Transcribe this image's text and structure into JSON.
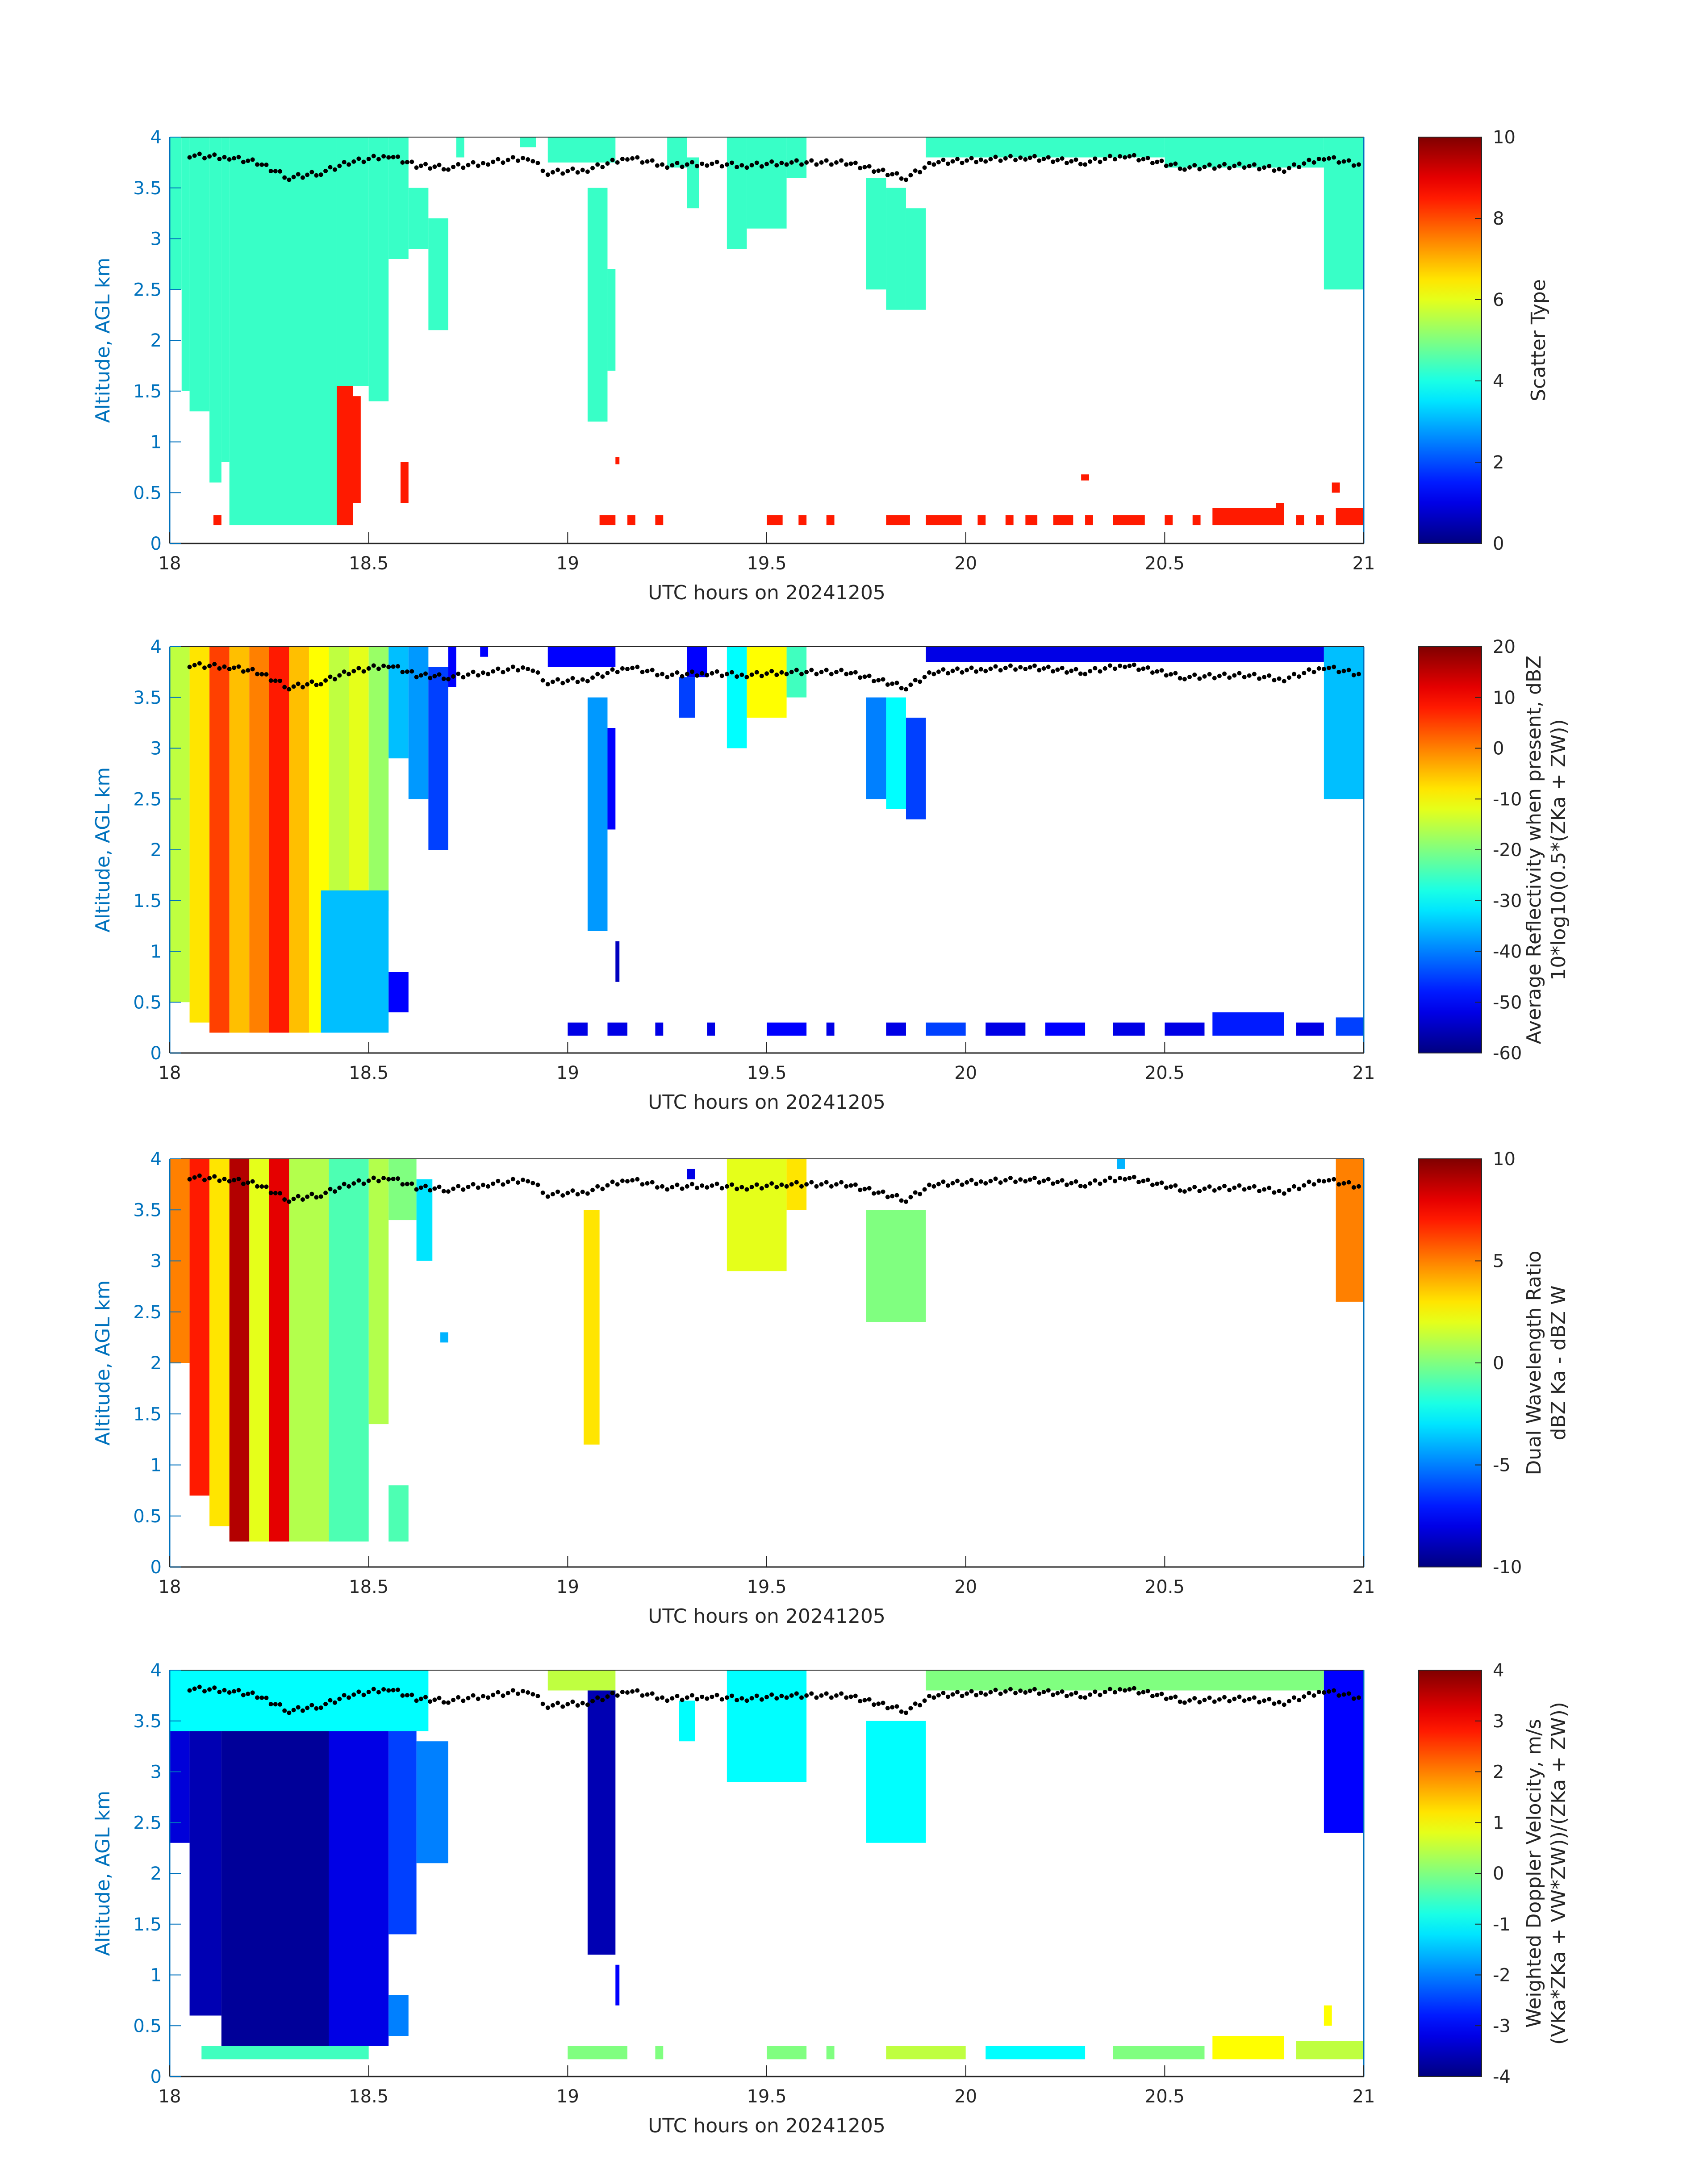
{
  "chart_data": [
    {
      "type": "heatmap",
      "xlabel": "UTC hours on 20241205",
      "ylabel": "Altitude, AGL km",
      "xlim": [
        18,
        21
      ],
      "ylim": [
        0,
        4
      ],
      "xticks": [
        "18",
        "18.5",
        "19",
        "19.5",
        "20",
        "20.5",
        "21"
      ],
      "yticks": [
        "0",
        "0.5",
        "1",
        "1.5",
        "2",
        "2.5",
        "3",
        "3.5",
        "4"
      ],
      "colorbar": {
        "label": "Scatter Type",
        "label2": "",
        "clim": [
          0,
          10
        ],
        "ticks": [
          "0",
          "2",
          "4",
          "6",
          "8",
          "10"
        ]
      },
      "cells_t0_t1_z0_z1_value": [
        [
          18.0,
          18.03,
          2.5,
          4,
          4.3
        ],
        [
          18.03,
          18.05,
          1.5,
          4,
          4.3
        ],
        [
          18.05,
          18.1,
          1.3,
          4,
          4.3
        ],
        [
          18.1,
          18.13,
          0.6,
          4,
          4.3
        ],
        [
          18.13,
          18.15,
          0.8,
          4,
          4.3
        ],
        [
          18.15,
          18.42,
          0.18,
          4,
          4.3
        ],
        [
          18.42,
          18.5,
          1.55,
          4,
          4.3
        ],
        [
          18.5,
          18.55,
          1.4,
          4,
          4.3
        ],
        [
          18.55,
          18.6,
          2.8,
          4,
          4.3
        ],
        [
          18.6,
          18.65,
          2.9,
          3.5,
          4.3
        ],
        [
          18.65,
          18.7,
          2.1,
          3.2,
          4.3
        ],
        [
          18.72,
          18.74,
          3.8,
          4,
          4.3
        ],
        [
          18.88,
          18.92,
          3.9,
          4,
          4.3
        ],
        [
          18.95,
          19.12,
          3.75,
          4,
          4.3
        ],
        [
          19.05,
          19.1,
          1.2,
          3.5,
          4.3
        ],
        [
          19.1,
          19.12,
          1.7,
          2.7,
          4.3
        ],
        [
          19.25,
          19.3,
          3.7,
          4,
          4.3
        ],
        [
          19.3,
          19.33,
          3.3,
          3.8,
          4.3
        ],
        [
          19.4,
          19.45,
          2.9,
          4,
          4.3
        ],
        [
          19.45,
          19.55,
          3.1,
          4,
          4.3
        ],
        [
          19.55,
          19.6,
          3.6,
          4,
          4.3
        ],
        [
          19.75,
          19.8,
          2.5,
          3.6,
          4.3
        ],
        [
          19.8,
          19.85,
          2.3,
          3.5,
          4.3
        ],
        [
          19.85,
          19.9,
          2.3,
          3.3,
          4.3
        ],
        [
          19.9,
          20.5,
          3.8,
          4,
          4.3
        ],
        [
          20.5,
          20.9,
          3.7,
          4,
          4.3
        ],
        [
          20.9,
          21,
          2.5,
          4,
          4.3
        ],
        [
          18.42,
          18.46,
          0.18,
          1.55,
          8.5
        ],
        [
          18.46,
          18.48,
          0.4,
          1.45,
          8.5
        ],
        [
          18.58,
          18.6,
          0.4,
          0.8,
          8.5
        ],
        [
          18.11,
          18.13,
          0.18,
          0.28,
          8.5
        ],
        [
          19.12,
          19.13,
          0.78,
          0.85,
          8.5
        ],
        [
          19.08,
          19.12,
          0.18,
          0.28,
          8.5
        ],
        [
          19.15,
          19.17,
          0.18,
          0.28,
          8.5
        ],
        [
          19.22,
          19.24,
          0.18,
          0.28,
          8.5
        ],
        [
          19.5,
          19.54,
          0.18,
          0.28,
          8.5
        ],
        [
          19.58,
          19.6,
          0.18,
          0.28,
          8.5
        ],
        [
          19.65,
          19.67,
          0.18,
          0.28,
          8.5
        ],
        [
          19.8,
          19.86,
          0.18,
          0.28,
          8.5
        ],
        [
          19.9,
          19.99,
          0.18,
          0.28,
          8.5
        ],
        [
          20.03,
          20.05,
          0.18,
          0.28,
          8.5
        ],
        [
          20.1,
          20.12,
          0.18,
          0.28,
          8.5
        ],
        [
          20.15,
          20.18,
          0.18,
          0.28,
          8.5
        ],
        [
          20.22,
          20.27,
          0.18,
          0.28,
          8.5
        ],
        [
          20.29,
          20.31,
          0.62,
          0.68,
          8.5
        ],
        [
          20.3,
          20.32,
          0.18,
          0.28,
          8.5
        ],
        [
          20.37,
          20.45,
          0.18,
          0.28,
          8.5
        ],
        [
          20.5,
          20.52,
          0.18,
          0.28,
          8.5
        ],
        [
          20.57,
          20.59,
          0.18,
          0.28,
          8.5
        ],
        [
          20.62,
          20.78,
          0.18,
          0.35,
          8.5
        ],
        [
          20.78,
          20.8,
          0.18,
          0.4,
          8.5
        ],
        [
          20.83,
          20.85,
          0.18,
          0.28,
          8.5
        ],
        [
          20.88,
          20.9,
          0.18,
          0.28,
          8.5
        ],
        [
          20.92,
          20.94,
          0.5,
          0.6,
          8.5
        ],
        [
          20.93,
          21,
          0.18,
          0.35,
          8.5
        ]
      ]
    },
    {
      "type": "heatmap",
      "xlabel": "UTC hours on 20241205",
      "ylabel": "Altitude, AGL km",
      "xlim": [
        18,
        21
      ],
      "ylim": [
        0,
        4
      ],
      "xticks": [
        "18",
        "18.5",
        "19",
        "19.5",
        "20",
        "20.5",
        "21"
      ],
      "yticks": [
        "0",
        "0.5",
        "1",
        "1.5",
        "2",
        "2.5",
        "3",
        "3.5",
        "4"
      ],
      "colorbar": {
        "label": "Average Reflectivity when present, dBZ",
        "label2": "10*log10(0.5*(ZKa + ZW))",
        "clim": [
          -60,
          20
        ],
        "ticks": [
          "-60",
          "-50",
          "-40",
          "-30",
          "-20",
          "-10",
          "0",
          "10",
          "20"
        ]
      },
      "cells_t0_t1_z0_z1_value": [
        [
          18.0,
          18.05,
          0.5,
          4,
          -15
        ],
        [
          18.05,
          18.1,
          0.3,
          4,
          -8
        ],
        [
          18.1,
          18.15,
          0.2,
          4,
          5
        ],
        [
          18.15,
          18.2,
          0.2,
          4,
          -5
        ],
        [
          18.2,
          18.25,
          0.2,
          4,
          0
        ],
        [
          18.25,
          18.3,
          0.2,
          4,
          8
        ],
        [
          18.3,
          18.35,
          0.2,
          4,
          -5
        ],
        [
          18.35,
          18.4,
          0.2,
          4,
          -10
        ],
        [
          18.4,
          18.45,
          1.6,
          4,
          -15
        ],
        [
          18.45,
          18.5,
          1.6,
          4,
          -12
        ],
        [
          18.5,
          18.55,
          1.4,
          4,
          -18
        ],
        [
          18.38,
          18.55,
          0.2,
          1.6,
          -35
        ],
        [
          18.55,
          18.6,
          0.4,
          0.8,
          -50
        ],
        [
          18.55,
          18.6,
          2.9,
          4,
          -35
        ],
        [
          18.6,
          18.65,
          2.5,
          4,
          -38
        ],
        [
          18.65,
          18.7,
          2.0,
          3.8,
          -45
        ],
        [
          18.7,
          18.72,
          3.6,
          4,
          -50
        ],
        [
          18.78,
          18.8,
          3.9,
          4,
          -50
        ],
        [
          18.95,
          19.12,
          3.8,
          4,
          -50
        ],
        [
          19.05,
          19.1,
          1.2,
          3.5,
          -38
        ],
        [
          19.1,
          19.12,
          2.2,
          3.2,
          -50
        ],
        [
          19.12,
          19.13,
          0.7,
          1.1,
          -55
        ],
        [
          19.28,
          19.32,
          3.3,
          3.7,
          -45
        ],
        [
          19.3,
          19.35,
          3.7,
          4,
          -50
        ],
        [
          19.4,
          19.45,
          3.0,
          4,
          -30
        ],
        [
          19.45,
          19.55,
          3.3,
          4,
          -10
        ],
        [
          19.55,
          19.6,
          3.5,
          4,
          -25
        ],
        [
          19.75,
          19.8,
          2.5,
          3.5,
          -40
        ],
        [
          19.8,
          19.85,
          2.4,
          3.5,
          -30
        ],
        [
          19.85,
          19.9,
          2.3,
          3.3,
          -45
        ],
        [
          19.9,
          20.9,
          3.85,
          4,
          -52
        ],
        [
          20.9,
          21,
          2.5,
          4,
          -35
        ],
        [
          19.0,
          19.05,
          0.17,
          0.3,
          -52
        ],
        [
          19.1,
          19.15,
          0.17,
          0.3,
          -52
        ],
        [
          19.22,
          19.24,
          0.17,
          0.3,
          -52
        ],
        [
          19.35,
          19.37,
          0.17,
          0.3,
          -52
        ],
        [
          19.5,
          19.6,
          0.17,
          0.3,
          -50
        ],
        [
          19.65,
          19.67,
          0.17,
          0.3,
          -52
        ],
        [
          19.8,
          19.85,
          0.17,
          0.3,
          -52
        ],
        [
          19.9,
          20.0,
          0.17,
          0.3,
          -45
        ],
        [
          20.05,
          20.15,
          0.17,
          0.3,
          -52
        ],
        [
          20.2,
          20.3,
          0.17,
          0.3,
          -50
        ],
        [
          20.37,
          20.45,
          0.17,
          0.3,
          -52
        ],
        [
          20.5,
          20.6,
          0.17,
          0.3,
          -52
        ],
        [
          20.62,
          20.8,
          0.17,
          0.4,
          -48
        ],
        [
          20.83,
          20.9,
          0.17,
          0.3,
          -52
        ],
        [
          20.93,
          21,
          0.17,
          0.35,
          -45
        ]
      ]
    },
    {
      "type": "heatmap",
      "xlabel": "UTC hours on 20241205",
      "ylabel": "Altitude, AGL km",
      "xlim": [
        18,
        21
      ],
      "ylim": [
        0,
        4
      ],
      "xticks": [
        "18",
        "18.5",
        "19",
        "19.5",
        "20",
        "20.5",
        "21"
      ],
      "yticks": [
        "0",
        "0.5",
        "1",
        "1.5",
        "2",
        "2.5",
        "3",
        "3.5",
        "4"
      ],
      "colorbar": {
        "label": "Dual Wavelength Ratio",
        "label2": "dBZ Ka - dBZ W",
        "clim": [
          -10,
          10
        ],
        "ticks": [
          "-10",
          "-5",
          "0",
          "5",
          "10"
        ]
      },
      "cells_t0_t1_z0_z1_value": [
        [
          18.0,
          18.05,
          2.0,
          4,
          5
        ],
        [
          18.05,
          18.1,
          0.7,
          4,
          7
        ],
        [
          18.1,
          18.15,
          0.4,
          4,
          3
        ],
        [
          18.15,
          18.2,
          0.25,
          4,
          9
        ],
        [
          18.2,
          18.25,
          0.25,
          4,
          2
        ],
        [
          18.25,
          18.3,
          0.25,
          4,
          8
        ],
        [
          18.3,
          18.4,
          0.25,
          4,
          1
        ],
        [
          18.4,
          18.5,
          0.25,
          4,
          -1
        ],
        [
          18.5,
          18.55,
          1.4,
          4,
          1
        ],
        [
          18.55,
          18.6,
          0.25,
          0.8,
          -1
        ],
        [
          18.55,
          18.62,
          3.4,
          4,
          0
        ],
        [
          18.62,
          18.66,
          3.0,
          3.8,
          -3
        ],
        [
          18.68,
          18.7,
          2.2,
          2.3,
          -4
        ],
        [
          19.04,
          19.08,
          1.2,
          3.5,
          3
        ],
        [
          19.3,
          19.32,
          3.8,
          3.9,
          -8
        ],
        [
          19.4,
          19.55,
          2.9,
          4,
          2
        ],
        [
          19.55,
          19.6,
          3.5,
          4,
          3
        ],
        [
          19.75,
          19.9,
          2.4,
          3.5,
          0
        ],
        [
          20.38,
          20.4,
          3.9,
          4,
          -4
        ],
        [
          20.93,
          21,
          2.6,
          4,
          5
        ]
      ]
    },
    {
      "type": "heatmap",
      "xlabel": "UTC hours on 20241205",
      "ylabel": "Altitude, AGL km",
      "xlim": [
        18,
        21
      ],
      "ylim": [
        0,
        4
      ],
      "xticks": [
        "18",
        "18.5",
        "19",
        "19.5",
        "20",
        "20.5",
        "21"
      ],
      "yticks": [
        "0",
        "0.5",
        "1",
        "1.5",
        "2",
        "2.5",
        "3",
        "3.5",
        "4"
      ],
      "colorbar": {
        "label": "Weighted Doppler Velocity, m/s",
        "label2": "(VKa*ZKa + VW*ZW))/(ZKa + ZW))",
        "clim": [
          -4,
          4
        ],
        "ticks": [
          "-4",
          "-3",
          "-2",
          "-1",
          "0",
          "1",
          "2",
          "3",
          "4"
        ]
      },
      "cells_t0_t1_z0_z1_value": [
        [
          18.0,
          18.65,
          3.4,
          4,
          -1
        ],
        [
          18.0,
          18.05,
          2.3,
          3.4,
          -3.3
        ],
        [
          18.05,
          18.13,
          0.6,
          3.4,
          -3.6
        ],
        [
          18.13,
          18.4,
          0.2,
          3.4,
          -3.8
        ],
        [
          18.4,
          18.55,
          0.3,
          3.4,
          -3.2
        ],
        [
          18.55,
          18.62,
          1.4,
          3.4,
          -2.5
        ],
        [
          18.62,
          18.7,
          2.1,
          3.3,
          -2
        ],
        [
          18.55,
          18.6,
          0.4,
          0.8,
          -2
        ],
        [
          18.08,
          18.5,
          0.17,
          0.3,
          -0.5
        ],
        [
          19.05,
          19.12,
          1.2,
          3.8,
          -3.6
        ],
        [
          19.12,
          19.13,
          0.7,
          1.1,
          -3
        ],
        [
          18.95,
          19.12,
          3.8,
          4,
          0.5
        ],
        [
          19.28,
          19.32,
          3.3,
          3.7,
          -1
        ],
        [
          19.4,
          19.6,
          2.9,
          4,
          -1
        ],
        [
          19.75,
          19.9,
          2.3,
          3.5,
          -1
        ],
        [
          19.9,
          20.9,
          3.8,
          4,
          0
        ],
        [
          20.9,
          21,
          2.4,
          4,
          -3
        ],
        [
          19.0,
          19.15,
          0.17,
          0.3,
          0
        ],
        [
          19.22,
          19.24,
          0.17,
          0.3,
          0
        ],
        [
          19.5,
          19.6,
          0.17,
          0.3,
          0
        ],
        [
          19.65,
          19.67,
          0.17,
          0.3,
          0
        ],
        [
          19.8,
          20.0,
          0.17,
          0.3,
          0.5
        ],
        [
          20.05,
          20.3,
          0.17,
          0.3,
          -1
        ],
        [
          20.37,
          20.6,
          0.17,
          0.3,
          0
        ],
        [
          20.62,
          20.8,
          0.17,
          0.4,
          1
        ],
        [
          20.83,
          21,
          0.17,
          0.35,
          0.5
        ],
        [
          20.9,
          20.92,
          0.5,
          0.7,
          1
        ]
      ]
    }
  ],
  "melt_layer_dots_t_z": [
    [
      18.05,
      3.82
    ],
    [
      18.15,
      3.8
    ],
    [
      18.22,
      3.75
    ],
    [
      18.3,
      3.6
    ],
    [
      18.38,
      3.65
    ],
    [
      18.45,
      3.75
    ],
    [
      18.55,
      3.82
    ],
    [
      18.62,
      3.72
    ],
    [
      18.7,
      3.7
    ],
    [
      18.8,
      3.75
    ],
    [
      18.9,
      3.8
    ],
    [
      18.95,
      3.65
    ],
    [
      19.05,
      3.68
    ],
    [
      19.15,
      3.8
    ],
    [
      19.25,
      3.72
    ],
    [
      19.35,
      3.74
    ],
    [
      19.45,
      3.72
    ],
    [
      19.55,
      3.75
    ],
    [
      19.7,
      3.75
    ],
    [
      19.85,
      3.6
    ],
    [
      19.92,
      3.75
    ],
    [
      20.05,
      3.78
    ],
    [
      20.15,
      3.8
    ],
    [
      20.3,
      3.75
    ],
    [
      20.4,
      3.82
    ],
    [
      20.55,
      3.7
    ],
    [
      20.7,
      3.72
    ],
    [
      20.8,
      3.68
    ],
    [
      20.9,
      3.8
    ],
    [
      21.0,
      3.72
    ]
  ],
  "colors": {
    "axis_blue": "#0072BD"
  }
}
